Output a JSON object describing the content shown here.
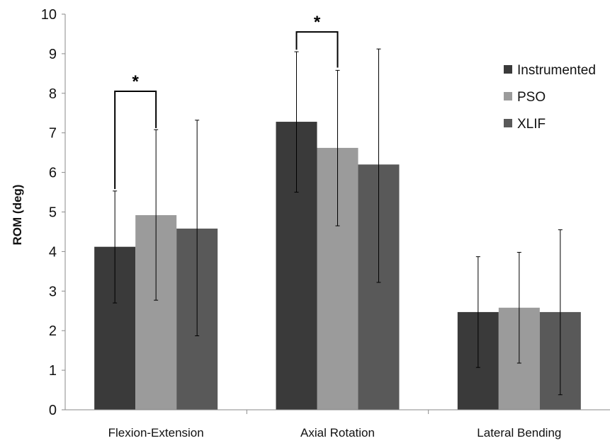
{
  "chart_data": {
    "type": "bar",
    "title": "",
    "xlabel": "",
    "ylabel": "ROM (deg)",
    "ylim": [
      0,
      10
    ],
    "yticks": [
      "0",
      "1",
      "2",
      "3",
      "4",
      "5",
      "6",
      "7",
      "8",
      "9",
      "10"
    ],
    "grid": false,
    "legend_position": "top-right",
    "categories": [
      "Flexion-Extension",
      "Axial Rotation",
      "Lateral Bending"
    ],
    "series": [
      {
        "name": "Instrumented",
        "color": "#3a3a3a",
        "values": [
          4.12,
          7.28,
          2.47
        ],
        "err_low": [
          2.7,
          5.5,
          1.07
        ],
        "err_high": [
          5.53,
          9.05,
          3.87
        ]
      },
      {
        "name": "PSO",
        "color": "#9b9b9b",
        "values": [
          4.92,
          6.62,
          2.58
        ],
        "err_low": [
          2.77,
          4.65,
          1.18
        ],
        "err_high": [
          7.08,
          8.58,
          3.98
        ]
      },
      {
        "name": "XLIF",
        "color": "#595959",
        "values": [
          4.58,
          6.2,
          2.47
        ],
        "err_low": [
          1.87,
          3.22,
          0.38
        ],
        "err_high": [
          7.32,
          9.12,
          4.55
        ]
      }
    ],
    "annotations": [
      {
        "text": "*",
        "category_index": 0,
        "from_series": 0,
        "to_series": 1,
        "left_bottom": 5.58,
        "right_bottom": 7.12,
        "top": 8.05
      },
      {
        "text": "*",
        "category_index": 1,
        "from_series": 0,
        "to_series": 1,
        "left_bottom": 9.1,
        "right_bottom": 8.65,
        "top": 9.55
      }
    ]
  }
}
